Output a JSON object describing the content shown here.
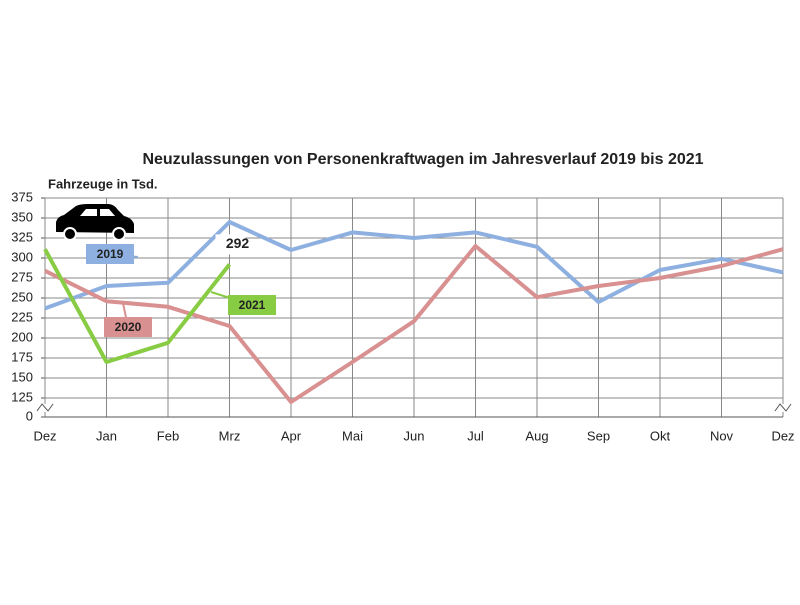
{
  "chart_data": {
    "type": "line",
    "title": "Neuzulassungen von Personenkraftwagen im Jahresverlauf 2019 bis 2021",
    "y_label": "Fahrzeuge in Tsd.",
    "categories": [
      "Dez",
      "Jan",
      "Feb",
      "Mrz",
      "Apr",
      "Mai",
      "Jun",
      "Jul",
      "Aug",
      "Sep",
      "Okt",
      "Nov",
      "Dez"
    ],
    "series": [
      {
        "name": "2019",
        "color": "#8eb0e0",
        "values": [
          237,
          265,
          269,
          345,
          310,
          332,
          325,
          332,
          314,
          245,
          285,
          299,
          282
        ]
      },
      {
        "name": "2020",
        "color": "#d99090",
        "values": [
          284,
          246,
          239,
          215,
          120,
          170,
          221,
          315,
          251,
          265,
          275,
          290,
          311
        ]
      },
      {
        "name": "2021",
        "color": "#88cc44",
        "values": [
          311,
          170,
          194,
          292,
          null,
          null,
          null,
          null,
          null,
          null,
          null,
          null,
          null
        ],
        "value_labels": [
          null,
          null,
          null,
          "292",
          null,
          null,
          null,
          null,
          null,
          null,
          null,
          null,
          null
        ]
      }
    ],
    "ylim": [
      0,
      375
    ],
    "y_break": [
      0,
      125
    ],
    "yticks": [
      0,
      125,
      150,
      175,
      200,
      225,
      250,
      275,
      300,
      325,
      350,
      375
    ],
    "grid": true
  }
}
